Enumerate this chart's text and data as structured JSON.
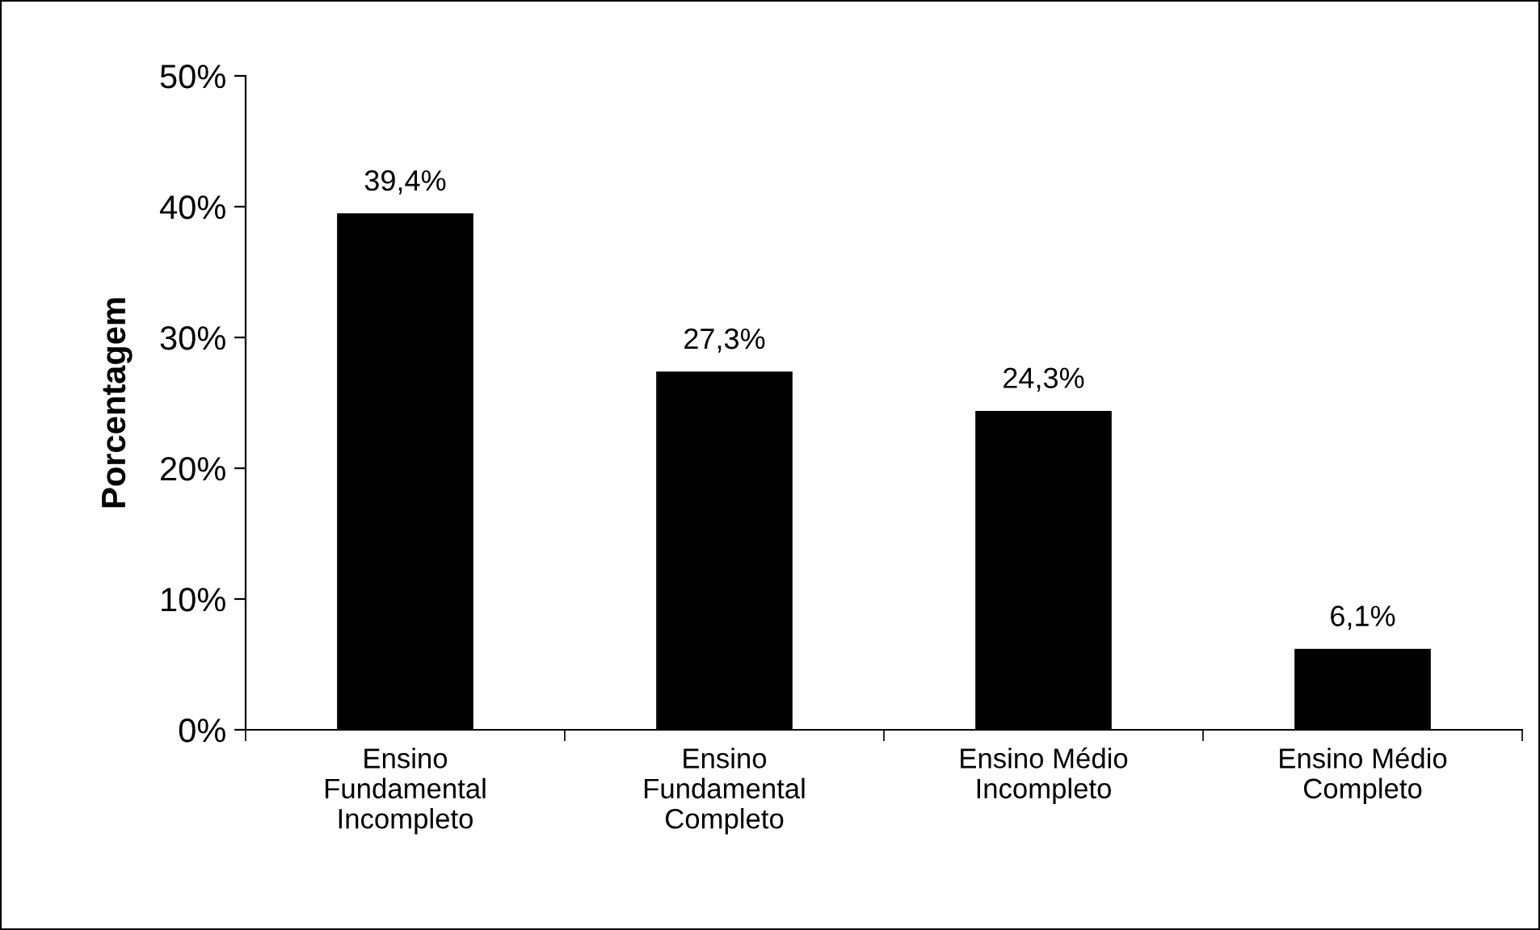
{
  "chart_data": {
    "type": "bar",
    "ylabel": "Porcentagem",
    "categories": [
      "Ensino\nFundamental\nIncompleto",
      "Ensino\nFundamental\nCompleto",
      "Ensino Médio\nIncompleto",
      "Ensino Médio\nCompleto"
    ],
    "values": [
      39.4,
      27.3,
      24.3,
      6.1
    ],
    "value_labels": [
      "39,4%",
      "27,3%",
      "24,3%",
      "6,1%"
    ],
    "color": "#000000",
    "ylim": [
      0,
      50
    ],
    "yticks": [
      {
        "value": 0,
        "label": "0%"
      },
      {
        "value": 10,
        "label": "10%"
      },
      {
        "value": 20,
        "label": "20%"
      },
      {
        "value": 30,
        "label": "30%"
      },
      {
        "value": 40,
        "label": "40%"
      },
      {
        "value": 50,
        "label": "50%"
      }
    ],
    "grid": false
  }
}
